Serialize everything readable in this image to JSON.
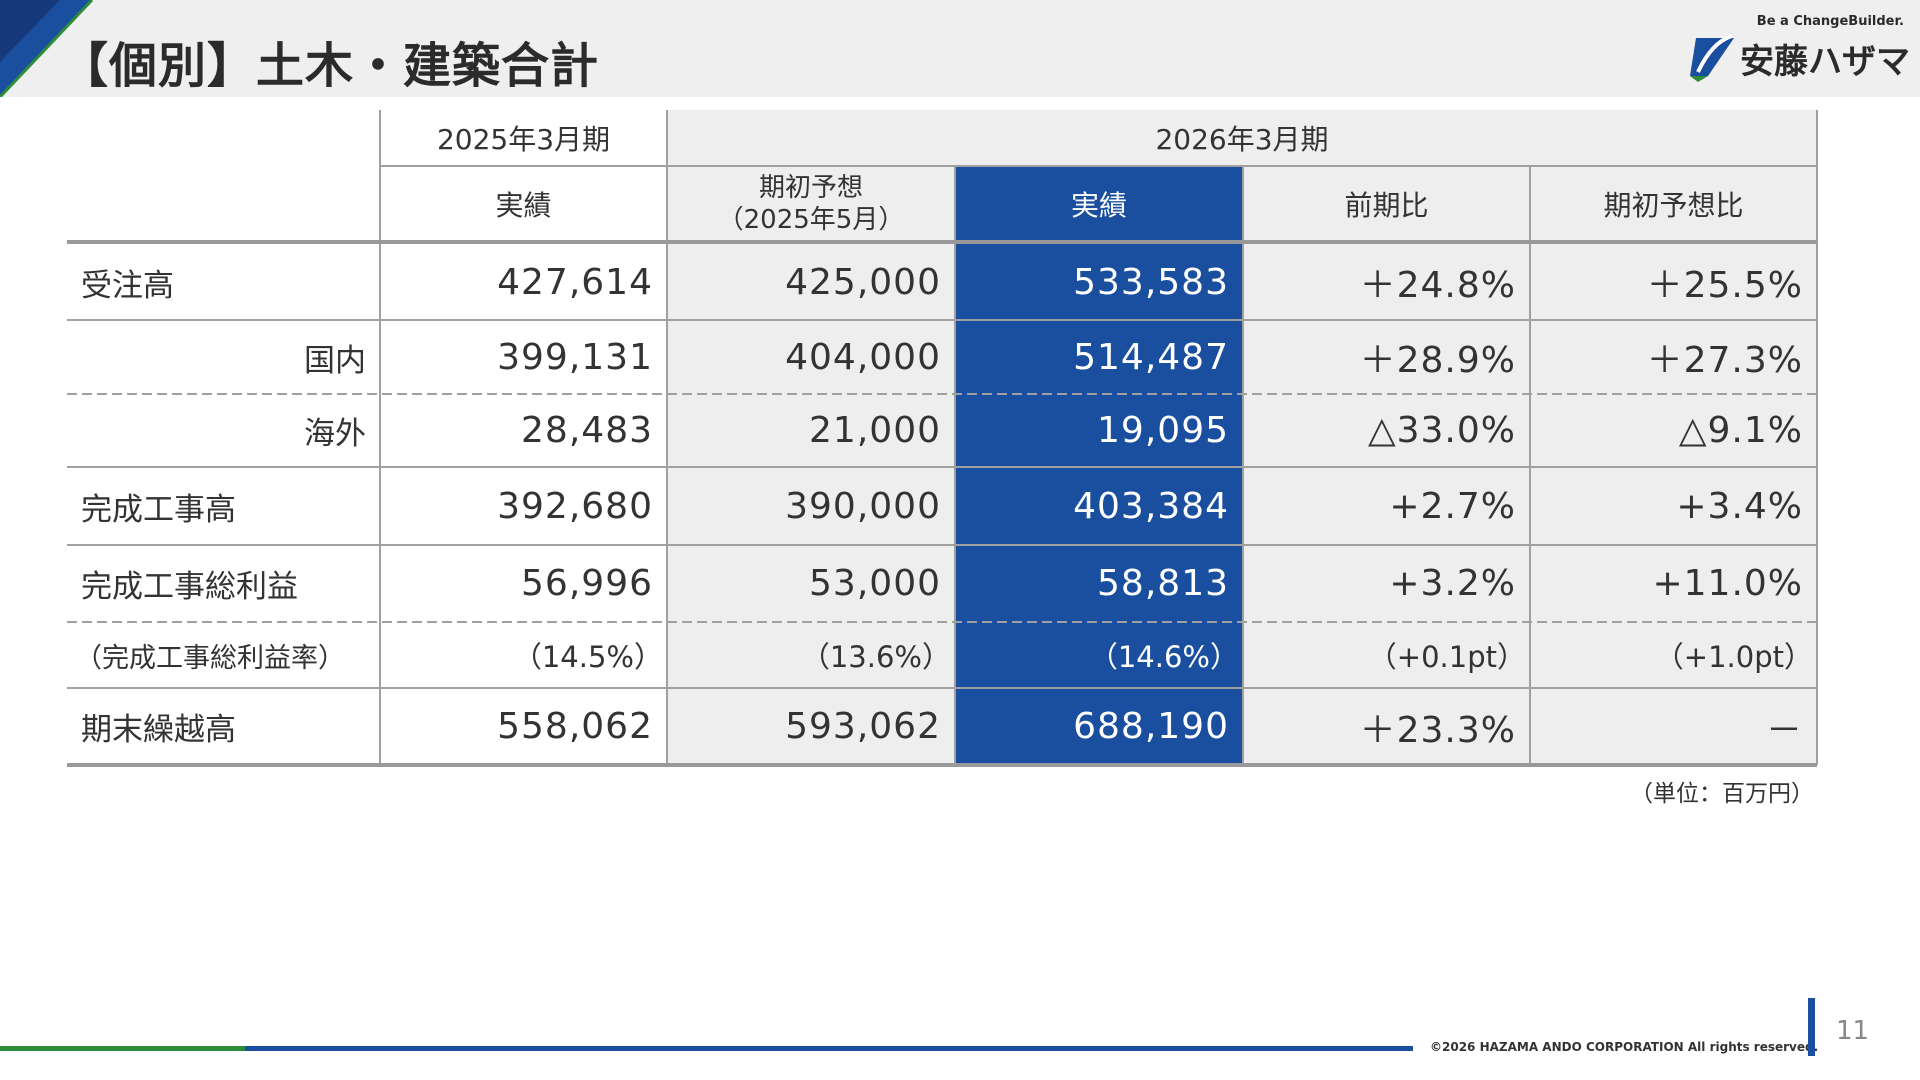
{
  "page": {
    "title": "【個別】土木・建築合計",
    "page_number": "11",
    "copyright": "©2026 HAZAMA ANDO CORPORATION All rights reserved.",
    "unit_note": "（単位：百万円）"
  },
  "logo": {
    "tagline": "Be a ChangeBuilder.",
    "name": "安藤ハザマ"
  },
  "colors": {
    "highlight": "#1a4fa0",
    "header_bg": "#efefef",
    "forecast_bg": "#eeeeee",
    "green": "#2e8b3a"
  },
  "table": {
    "period_prev": "2025年3月期",
    "period_curr": "2026年3月期",
    "headers": {
      "prev_actual": "実績",
      "forecast_line1": "期初予想",
      "forecast_line2": "（2025年5月）",
      "curr_actual": "実績",
      "yoy": "前期比",
      "vs_forecast": "期初予想比"
    },
    "rows": [
      {
        "label": "受注高",
        "prev": "427,614",
        "forecast": "425,000",
        "actual": "533,583",
        "yoy": "＋24.8%",
        "vs_forecast": "＋25.5%"
      },
      {
        "label": "国内",
        "prev": "399,131",
        "forecast": "404,000",
        "actual": "514,487",
        "yoy": "＋28.9%",
        "vs_forecast": "＋27.3%"
      },
      {
        "label": "海外",
        "prev": "28,483",
        "forecast": "21,000",
        "actual": "19,095",
        "yoy": "△33.0%",
        "vs_forecast": "△9.1%"
      },
      {
        "label": "完成工事高",
        "prev": "392,680",
        "forecast": "390,000",
        "actual": "403,384",
        "yoy": "+2.7%",
        "vs_forecast": "+3.4%"
      },
      {
        "label": "完成工事総利益",
        "prev": "56,996",
        "forecast": "53,000",
        "actual": "58,813",
        "yoy": "+3.2%",
        "vs_forecast": "+11.0%"
      },
      {
        "label": "（完成工事総利益率）",
        "prev": "（14.5%）",
        "forecast": "（13.6%）",
        "actual": "（14.6%）",
        "yoy": "（+0.1pt）",
        "vs_forecast": "（+1.0pt）"
      },
      {
        "label": "期末繰越高",
        "prev": "558,062",
        "forecast": "593,062",
        "actual": "688,190",
        "yoy": "＋23.3%",
        "vs_forecast": "－"
      }
    ]
  }
}
